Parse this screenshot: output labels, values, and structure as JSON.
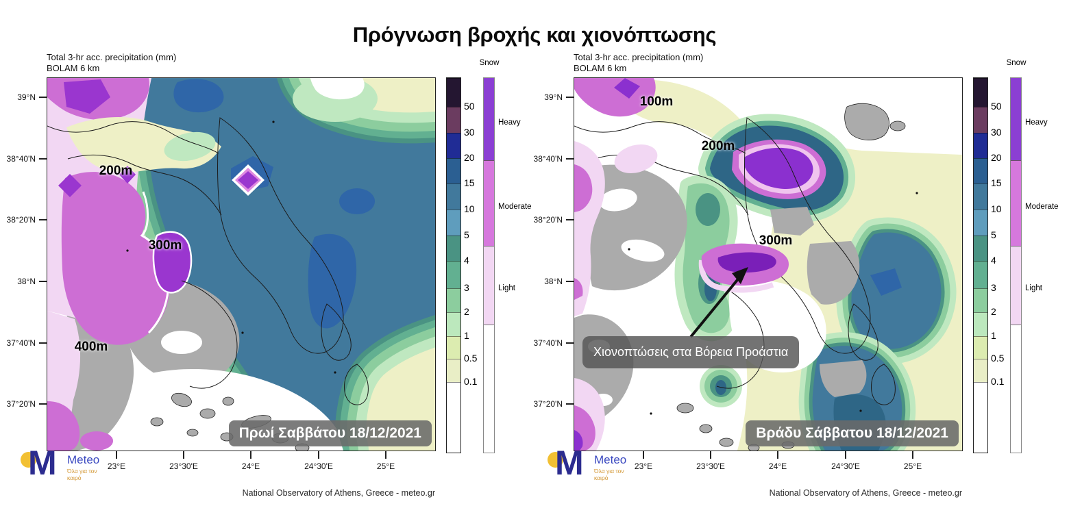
{
  "title": "Πρόγνωση βροχής και χιονόπτωσης",
  "attribution": "National Observatory of Athens, Greece - meteo.gr",
  "logo": {
    "mark": "M",
    "name": "Meteo",
    "tagline": "Όλα για τον καιρό",
    "dot_color": "#f2c033",
    "mark_color": "#2c2c8f",
    "name_color": "#3a49c0",
    "tagline_color": "#d2952f"
  },
  "panels": [
    {
      "header_line1": "Total 3-hr acc. precipitation (mm)",
      "header_line2": "BOLAM 6 km",
      "date_label": "Πρωί Σαββάτου 18/12/2021",
      "elevation_labels": [
        "200m",
        "300m",
        "400m"
      ],
      "annotation": null
    },
    {
      "header_line1": "Total 3-hr acc. precipitation (mm)",
      "header_line2": "BOLAM 6 km",
      "date_label": "Βράδυ Σάββατου 18/12/2021",
      "elevation_labels": [
        "100m",
        "200m",
        "300m"
      ],
      "annotation": "Χιονοπτώσεις στα Βόρεια Προάστια"
    }
  ],
  "axes": {
    "lat": [
      "39°N",
      "38°40'N",
      "38°20'N",
      "38°N",
      "37°40'N",
      "37°20'N"
    ],
    "lon": [
      "23°E",
      "23°30'E",
      "24°E",
      "24°30'E",
      "25°E"
    ]
  },
  "colorbar": {
    "snow_title": "Snow",
    "scale": [
      {
        "label": "50",
        "color": "#241631",
        "h": 42
      },
      {
        "label": "30",
        "color": "#6b3c60",
        "h": 38
      },
      {
        "label": "20",
        "color": "#202c95",
        "h": 37
      },
      {
        "label": "15",
        "color": "#2b5f92",
        "h": 37
      },
      {
        "label": "10",
        "color": "#41799c",
        "h": 38
      },
      {
        "label": "5",
        "color": "#5f9dbd",
        "h": 38
      },
      {
        "label": "4",
        "color": "#4a9383",
        "h": 37
      },
      {
        "label": "3",
        "color": "#62b091",
        "h": 40
      },
      {
        "label": "2",
        "color": "#8ccd9e",
        "h": 35
      },
      {
        "label": "1",
        "color": "#bce8bd",
        "h": 35
      },
      {
        "label": "0.5",
        "color": "#dcecb0",
        "h": 33
      },
      {
        "label": "0.1",
        "color": "#e9eec6",
        "h": 34
      },
      {
        "label": null,
        "color": "#ffffff",
        "h": 103
      }
    ],
    "snow_scale": [
      {
        "label": "Heavy",
        "color": "#8b3fd3",
        "h": 120
      },
      {
        "label": "Moderate",
        "color": "#d678dd",
        "h": 125
      },
      {
        "label": "Light",
        "color": "#f2d7f3",
        "h": 115
      },
      {
        "label": null,
        "color": "#ffffff",
        "h": 187
      }
    ]
  },
  "map_colors": {
    "rain_heavy_band": "#41799c",
    "rain_15_20": "#2f66a8",
    "rain_4_5": "#4a9383",
    "rain_light_green": "#bfe8c0",
    "rain_pale_yellow": "#eef0c6",
    "snow_heavy": "#9a36cf",
    "snow_moderate": "#cd6ed4",
    "snow_light": "#f2d7f3",
    "dry_land_gray": "#ababab"
  }
}
